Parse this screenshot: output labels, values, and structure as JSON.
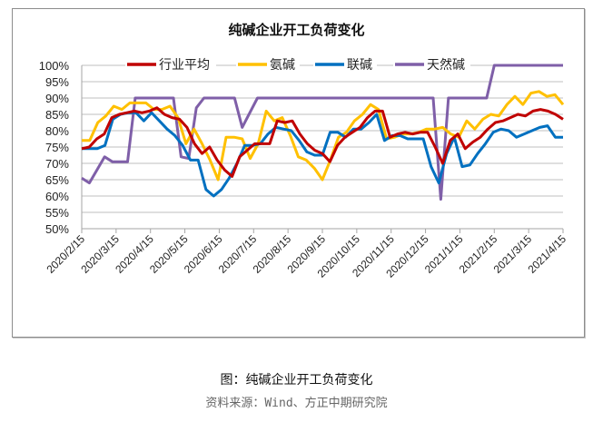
{
  "chart": {
    "title": "纯碱企业开工负荷变化",
    "caption": "图：纯碱企业开工负荷变化",
    "source": "资料来源：Wind、方正中期研究院"
  },
  "colors": {
    "行业平均": "#c00000",
    "氨碱": "#ffc000",
    "联碱": "#0070c0",
    "天然碱": "#7f5fa8",
    "grid": "#bfbfbf",
    "axis": "#a6a6a6"
  },
  "chart_data": {
    "type": "line",
    "title": "纯碱企业开工负荷变化",
    "xlabel": "",
    "ylabel": "",
    "ylim": [
      0.5,
      1.0
    ],
    "yticks": [
      "100%",
      "95%",
      "90%",
      "85%",
      "80%",
      "75%",
      "70%",
      "65%",
      "60%",
      "55%",
      "50%"
    ],
    "xticks": [
      "2020/2/15",
      "2020/3/15",
      "2020/4/15",
      "2020/5/15",
      "2020/6/15",
      "2020/7/15",
      "2020/8/15",
      "2020/9/15",
      "2020/10/15",
      "2020/11/15",
      "2020/12/15",
      "2021/1/15",
      "2021/2/15",
      "2021/3/15",
      "2021/4/15"
    ],
    "grid": true,
    "legend_position": "top",
    "series": [
      {
        "name": "行业平均",
        "values": [
          74.5,
          75,
          77.5,
          79,
          84,
          85,
          85.5,
          86,
          85.5,
          86,
          87,
          85,
          84,
          83.5,
          81,
          76,
          73,
          75,
          71,
          68,
          66,
          72,
          74,
          76,
          76,
          76,
          83,
          82.5,
          83,
          79,
          76,
          74,
          73,
          70.5,
          75.5,
          78,
          79.5,
          81,
          84,
          86,
          86,
          78,
          79,
          79.5,
          79,
          79.5,
          79.5,
          75,
          70,
          77,
          79,
          74.5,
          76.5,
          78,
          80.5,
          82.5,
          83,
          84,
          85,
          84.5,
          86,
          86.5,
          86,
          85,
          83.5
        ]
      },
      {
        "name": "氨碱",
        "values": [
          77,
          77,
          82.5,
          84.5,
          87.5,
          86.5,
          88.5,
          88.5,
          88.5,
          86.5,
          86.5,
          87.5,
          84,
          76,
          80.5,
          76,
          71,
          65,
          78,
          78,
          77.5,
          71.5,
          76,
          86,
          83,
          84,
          78.5,
          72,
          71,
          68.5,
          65,
          71,
          78,
          79.5,
          83,
          85,
          88,
          86.5,
          77.5,
          78,
          79,
          79,
          79.5,
          80.5,
          80.5,
          81,
          79,
          78,
          83,
          80.5,
          83.5,
          85,
          84.5,
          88,
          90.5,
          88,
          91.5,
          92,
          90.5,
          91,
          88
        ]
      },
      {
        "name": "联碱",
        "values": [
          74.5,
          74.5,
          74.5,
          75.5,
          83.5,
          85,
          85.5,
          85.5,
          83,
          85.5,
          83,
          80.5,
          78.5,
          75.5,
          71,
          71,
          62,
          60,
          62,
          65.5,
          70,
          75.5,
          75.5,
          76,
          79,
          81,
          80.5,
          80,
          77,
          73.5,
          72.5,
          72.5,
          79.5,
          79.5,
          78,
          80.5,
          80.5,
          82.5,
          85,
          77,
          78.5,
          78.5,
          77.5,
          77.5,
          77.5,
          69,
          64,
          73,
          78,
          69,
          69.5,
          73,
          76,
          79.5,
          80.5,
          80,
          78,
          79,
          80,
          81,
          81.5,
          78,
          78
        ]
      },
      {
        "name": "天然碱",
        "values": [
          65.5,
          64,
          68,
          72,
          70.5,
          70.5,
          70.5,
          90,
          90,
          90,
          90,
          90,
          90,
          72,
          71.5,
          87,
          90,
          90,
          90,
          90,
          90,
          81,
          85.5,
          90,
          90,
          90,
          90,
          90,
          90,
          90,
          90,
          90,
          90,
          90,
          90,
          90,
          90,
          90,
          90,
          90,
          90,
          90,
          90,
          90,
          90,
          90,
          90,
          59,
          90,
          90,
          90,
          90,
          90,
          90,
          100,
          100,
          100,
          100,
          100,
          100,
          100,
          100,
          100,
          100
        ]
      }
    ]
  }
}
